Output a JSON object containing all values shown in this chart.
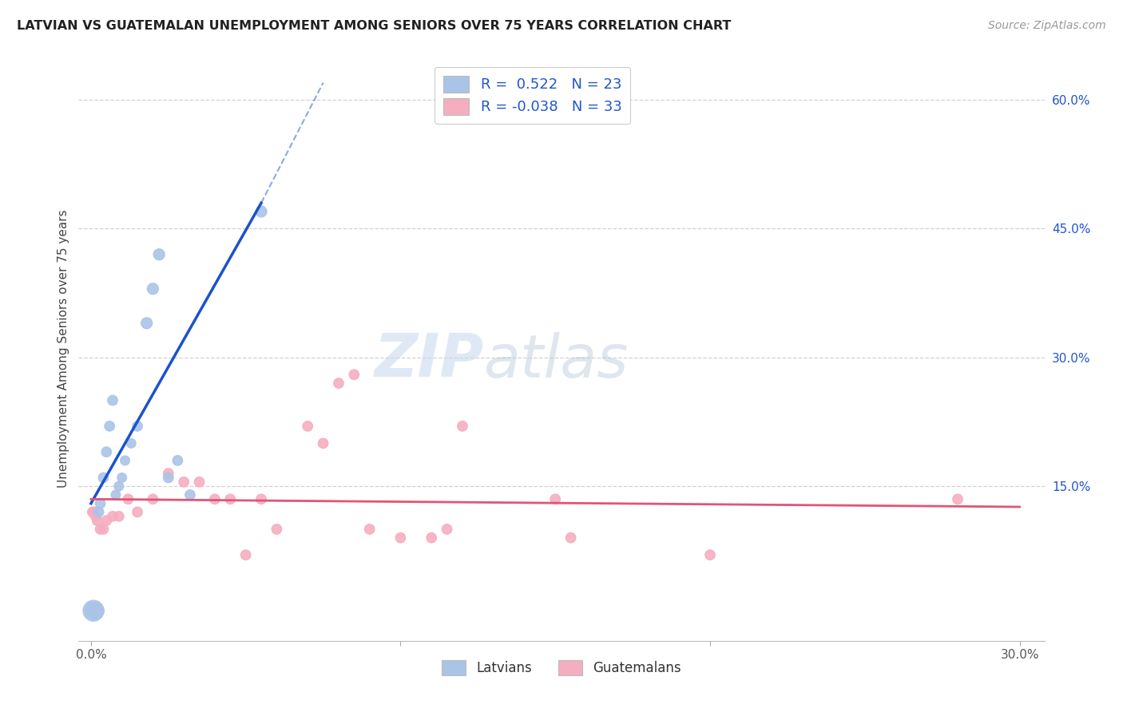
{
  "title": "LATVIAN VS GUATEMALAN UNEMPLOYMENT AMONG SENIORS OVER 75 YEARS CORRELATION CHART",
  "source": "Source: ZipAtlas.com",
  "ylabel": "Unemployment Among Seniors over 75 years",
  "xlim": [
    -0.004,
    0.308
  ],
  "ylim": [
    -0.03,
    0.65
  ],
  "ytick_positions": [
    0.0,
    0.15,
    0.3,
    0.45,
    0.6
  ],
  "ytick_labels": [
    "",
    "15.0%",
    "30.0%",
    "45.0%",
    "60.0%"
  ],
  "xtick_positions": [
    0.0,
    0.1,
    0.2,
    0.3
  ],
  "xtick_labels": [
    "0.0%",
    "",
    "",
    "30.0%"
  ],
  "background_color": "#ffffff",
  "grid_color": "#cccccc",
  "latvian_color": "#aac4e8",
  "guatemalan_color": "#f5aec0",
  "latvian_line_color": "#1a52cc",
  "guatemalan_line_color": "#e05575",
  "latvian_R": 0.522,
  "latvian_N": 23,
  "guatemalan_R": -0.038,
  "guatemalan_N": 33,
  "legend_R_color": "#2255cc",
  "watermark_zip": "ZIP",
  "watermark_atlas": "atlas",
  "latvian_x": [
    0.0008,
    0.001,
    0.0015,
    0.002,
    0.0025,
    0.003,
    0.004,
    0.005,
    0.006,
    0.007,
    0.008,
    0.009,
    0.01,
    0.011,
    0.013,
    0.015,
    0.018,
    0.02,
    0.022,
    0.025,
    0.028,
    0.032,
    0.055
  ],
  "latvian_y": [
    0.005,
    0.005,
    0.005,
    0.005,
    0.12,
    0.13,
    0.16,
    0.19,
    0.22,
    0.25,
    0.14,
    0.15,
    0.16,
    0.18,
    0.2,
    0.22,
    0.34,
    0.38,
    0.42,
    0.16,
    0.18,
    0.14,
    0.47
  ],
  "latvian_sizes": [
    350,
    250,
    180,
    150,
    80,
    80,
    80,
    80,
    80,
    80,
    70,
    70,
    70,
    70,
    70,
    80,
    100,
    100,
    100,
    80,
    80,
    80,
    100
  ],
  "guatemalan_x": [
    0.0005,
    0.001,
    0.0015,
    0.002,
    0.003,
    0.004,
    0.005,
    0.007,
    0.009,
    0.012,
    0.015,
    0.02,
    0.025,
    0.03,
    0.035,
    0.04,
    0.045,
    0.05,
    0.055,
    0.06,
    0.07,
    0.075,
    0.08,
    0.085,
    0.09,
    0.1,
    0.11,
    0.115,
    0.12,
    0.15,
    0.155,
    0.2,
    0.28
  ],
  "guatemalan_y": [
    0.12,
    0.12,
    0.115,
    0.11,
    0.1,
    0.1,
    0.11,
    0.115,
    0.115,
    0.135,
    0.12,
    0.135,
    0.165,
    0.155,
    0.155,
    0.135,
    0.135,
    0.07,
    0.135,
    0.1,
    0.22,
    0.2,
    0.27,
    0.28,
    0.1,
    0.09,
    0.09,
    0.1,
    0.22,
    0.135,
    0.09,
    0.07,
    0.135
  ],
  "guatemalan_sizes": [
    80,
    80,
    80,
    80,
    80,
    80,
    80,
    80,
    80,
    80,
    80,
    80,
    80,
    80,
    80,
    80,
    80,
    80,
    80,
    80,
    80,
    80,
    80,
    80,
    80,
    80,
    80,
    80,
    80,
    80,
    80,
    80,
    80
  ],
  "blue_line_x0": 0.0,
  "blue_line_y0": 0.13,
  "blue_line_x1_solid": 0.055,
  "blue_line_y1_solid": 0.48,
  "blue_line_x1_dash": 0.075,
  "blue_line_y1_dash": 0.62,
  "pink_line_x0": 0.0,
  "pink_line_y0": 0.135,
  "pink_line_x1": 0.3,
  "pink_line_y1": 0.126
}
